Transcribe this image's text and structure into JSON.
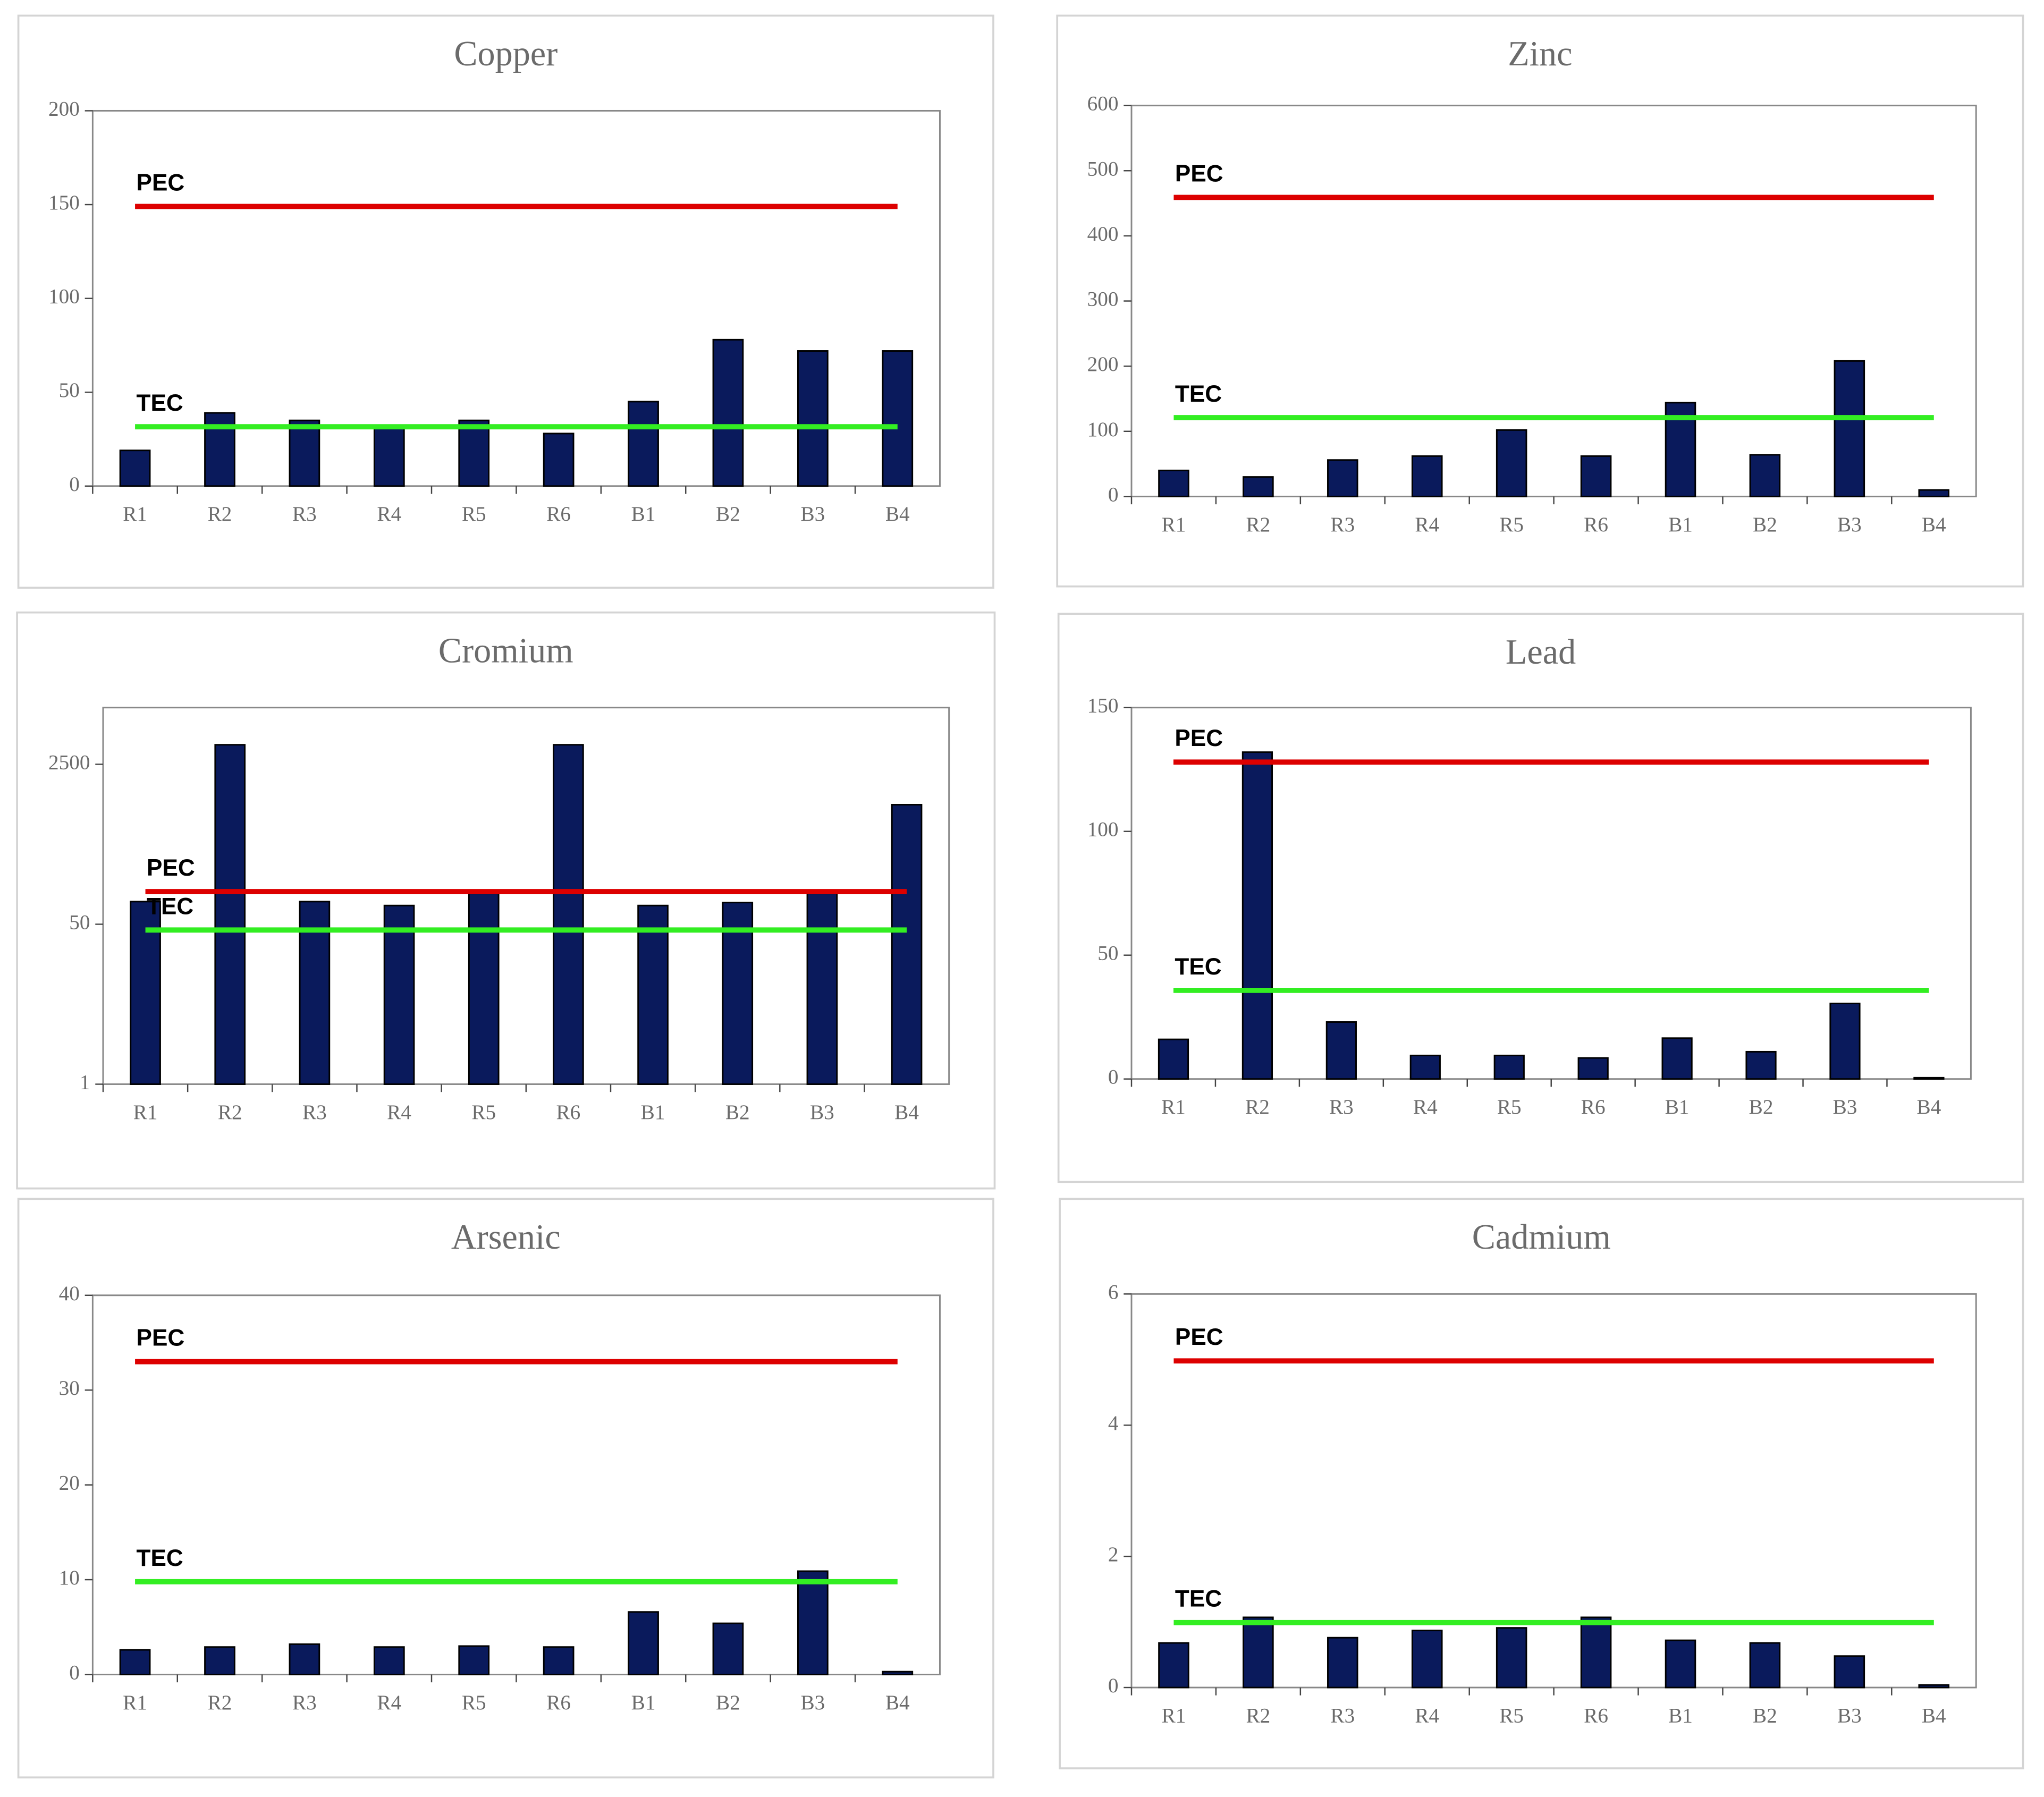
{
  "chart_data": [
    {
      "type": "bar",
      "title": "Copper",
      "categories": [
        "R1",
        "R2",
        "R3",
        "R4",
        "R5",
        "R6",
        "B1",
        "B2",
        "B3",
        "B4"
      ],
      "values": [
        19,
        39,
        35,
        31,
        35,
        28,
        45,
        78,
        72,
        72
      ],
      "color": "#0a1a5c",
      "ylim": [
        0,
        200
      ],
      "yticks": [
        0,
        50,
        100,
        150,
        200
      ],
      "ref_lines": [
        {
          "name": "PEC",
          "value": 149,
          "color": "#dd0000"
        },
        {
          "name": "TEC",
          "value": 31.6,
          "color": "#33ee22"
        }
      ]
    },
    {
      "type": "bar",
      "title": "Zinc",
      "categories": [
        "R1",
        "R2",
        "R3",
        "R4",
        "R5",
        "R6",
        "B1",
        "B2",
        "B3",
        "B4"
      ],
      "values": [
        40,
        30,
        56,
        62,
        102,
        62,
        144,
        64,
        208,
        10
      ],
      "color": "#0a1a5c",
      "ylim": [
        0,
        600
      ],
      "yticks": [
        0,
        100,
        200,
        300,
        400,
        500,
        600
      ],
      "ref_lines": [
        {
          "name": "PEC",
          "value": 459,
          "color": "#dd0000"
        },
        {
          "name": "TEC",
          "value": 121,
          "color": "#33ee22"
        }
      ]
    },
    {
      "type": "bar",
      "title": "Cromium",
      "categories": [
        "R1",
        "R2",
        "R3",
        "R4",
        "R5",
        "R6",
        "B1",
        "B2",
        "B3",
        "B4"
      ],
      "values": [
        87,
        4030,
        87,
        79,
        106,
        4030,
        79,
        85,
        106,
        930
      ],
      "color": "#0a1a5c",
      "ylim": [
        1,
        10000
      ],
      "yticks": [
        1,
        50,
        2500
      ],
      "log_scale": true,
      "ref_lines": [
        {
          "name": "PEC",
          "value": 111,
          "color": "#dd0000"
        },
        {
          "name": "TEC",
          "value": 43.4,
          "color": "#33ee22"
        }
      ]
    },
    {
      "type": "bar",
      "title": "Lead",
      "categories": [
        "R1",
        "R2",
        "R3",
        "R4",
        "R5",
        "R6",
        "B1",
        "B2",
        "B3",
        "B4"
      ],
      "values": [
        16,
        132,
        23,
        9.5,
        9.5,
        8.5,
        16.5,
        11,
        30.5,
        0.5
      ],
      "color": "#0a1a5c",
      "ylim": [
        0,
        150
      ],
      "yticks": [
        0,
        50,
        100,
        150
      ],
      "ref_lines": [
        {
          "name": "PEC",
          "value": 128,
          "color": "#dd0000"
        },
        {
          "name": "TEC",
          "value": 35.8,
          "color": "#33ee22"
        }
      ]
    },
    {
      "type": "bar",
      "title": "Arsenic",
      "categories": [
        "R1",
        "R2",
        "R3",
        "R4",
        "R5",
        "R6",
        "B1",
        "B2",
        "B3",
        "B4"
      ],
      "values": [
        2.6,
        2.9,
        3.2,
        2.9,
        3,
        2.9,
        6.6,
        5.4,
        10.9,
        0.3
      ],
      "color": "#0a1a5c",
      "ylim": [
        0,
        40
      ],
      "yticks": [
        0,
        10,
        20,
        30,
        40
      ],
      "ref_lines": [
        {
          "name": "PEC",
          "value": 33,
          "color": "#dd0000"
        },
        {
          "name": "TEC",
          "value": 9.79,
          "color": "#33ee22"
        }
      ]
    },
    {
      "type": "bar",
      "title": "Cadmium",
      "categories": [
        "R1",
        "R2",
        "R3",
        "R4",
        "R5",
        "R6",
        "B1",
        "B2",
        "B3",
        "B4"
      ],
      "values": [
        0.68,
        1.07,
        0.76,
        0.87,
        0.91,
        1.07,
        0.72,
        0.68,
        0.48,
        0.04
      ],
      "color": "#0a1a5c",
      "ylim": [
        0,
        6
      ],
      "yticks": [
        0,
        2,
        4,
        6
      ],
      "ref_lines": [
        {
          "name": "PEC",
          "value": 4.98,
          "color": "#dd0000"
        },
        {
          "name": "TEC",
          "value": 0.99,
          "color": "#33ee22"
        }
      ]
    }
  ]
}
